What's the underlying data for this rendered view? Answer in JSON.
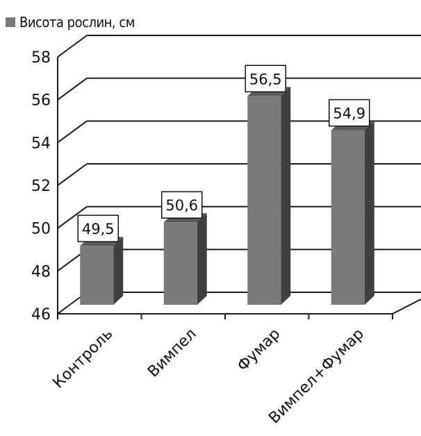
{
  "legend": {
    "label": "Висота рослин, см"
  },
  "colors": {
    "bar_front": "#7a7a7a",
    "bar_side": "#3f3f3f",
    "bar_top": "#5a5a5a",
    "grid": "#1a1a1a"
  },
  "chart_data": {
    "type": "bar",
    "title": "",
    "xlabel": "",
    "ylabel": "",
    "categories": [
      "Контроль",
      "Вимпел",
      "Фумар",
      "Вимпел+Фумар"
    ],
    "series": [
      {
        "name": "Висота рослин, см",
        "values": [
          49.5,
          50.6,
          56.5,
          54.9
        ]
      }
    ],
    "data_labels": [
      "49,5",
      "50,6",
      "56,5",
      "54,9"
    ],
    "ylim": [
      46,
      58
    ],
    "yticks": [
      46,
      48,
      50,
      52,
      54,
      56,
      58
    ],
    "grid": true,
    "legend_position": "top-left",
    "style": "3d-column"
  }
}
